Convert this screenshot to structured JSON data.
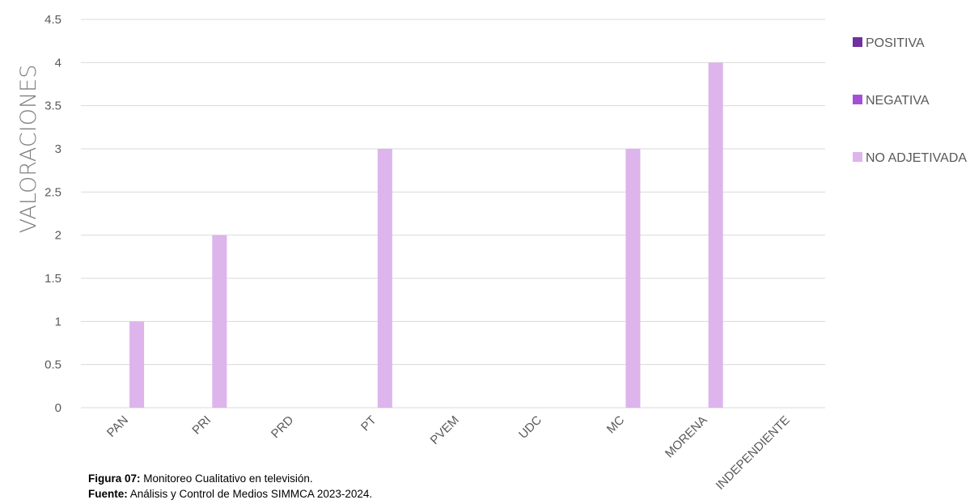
{
  "chart_data": {
    "type": "bar",
    "categories": [
      "PAN",
      "PRI",
      "PRD",
      "PT",
      "PVEM",
      "UDC",
      "MC",
      "MORENA",
      "INDEPENDIENTE"
    ],
    "series": [
      {
        "name": "POSITIVA",
        "color": "#7030a0",
        "values": [
          0,
          0,
          0,
          0,
          0,
          0,
          0,
          0,
          0
        ]
      },
      {
        "name": "NEGATIVA",
        "color": "#a54fd6",
        "values": [
          0,
          0,
          0,
          0,
          0,
          0,
          0,
          0,
          0
        ]
      },
      {
        "name": "NO ADJETIVADA",
        "color": "#ddb4ec",
        "values": [
          1,
          2,
          0,
          3,
          0,
          0,
          3,
          4,
          0
        ]
      }
    ],
    "ylabel": "VALORACIONES",
    "xlabel": "",
    "ylim": [
      0,
      4.5
    ],
    "yticks": [
      0,
      0.5,
      1,
      1.5,
      2,
      2.5,
      3,
      3.5,
      4,
      4.5
    ],
    "ytick_labels": [
      "0",
      "0.5",
      "1",
      "1.5",
      "2",
      "2.5",
      "3",
      "3.5",
      "4",
      "4.5"
    ],
    "grid": true,
    "legend_position": "right"
  },
  "caption": {
    "figure_label": "Figura 07:",
    "figure_text": " Monitoreo Cualitativo en televisión.",
    "source_label": "Fuente:",
    "source_text": " Análisis y Control de Medios SIMMCA 2023-2024."
  }
}
